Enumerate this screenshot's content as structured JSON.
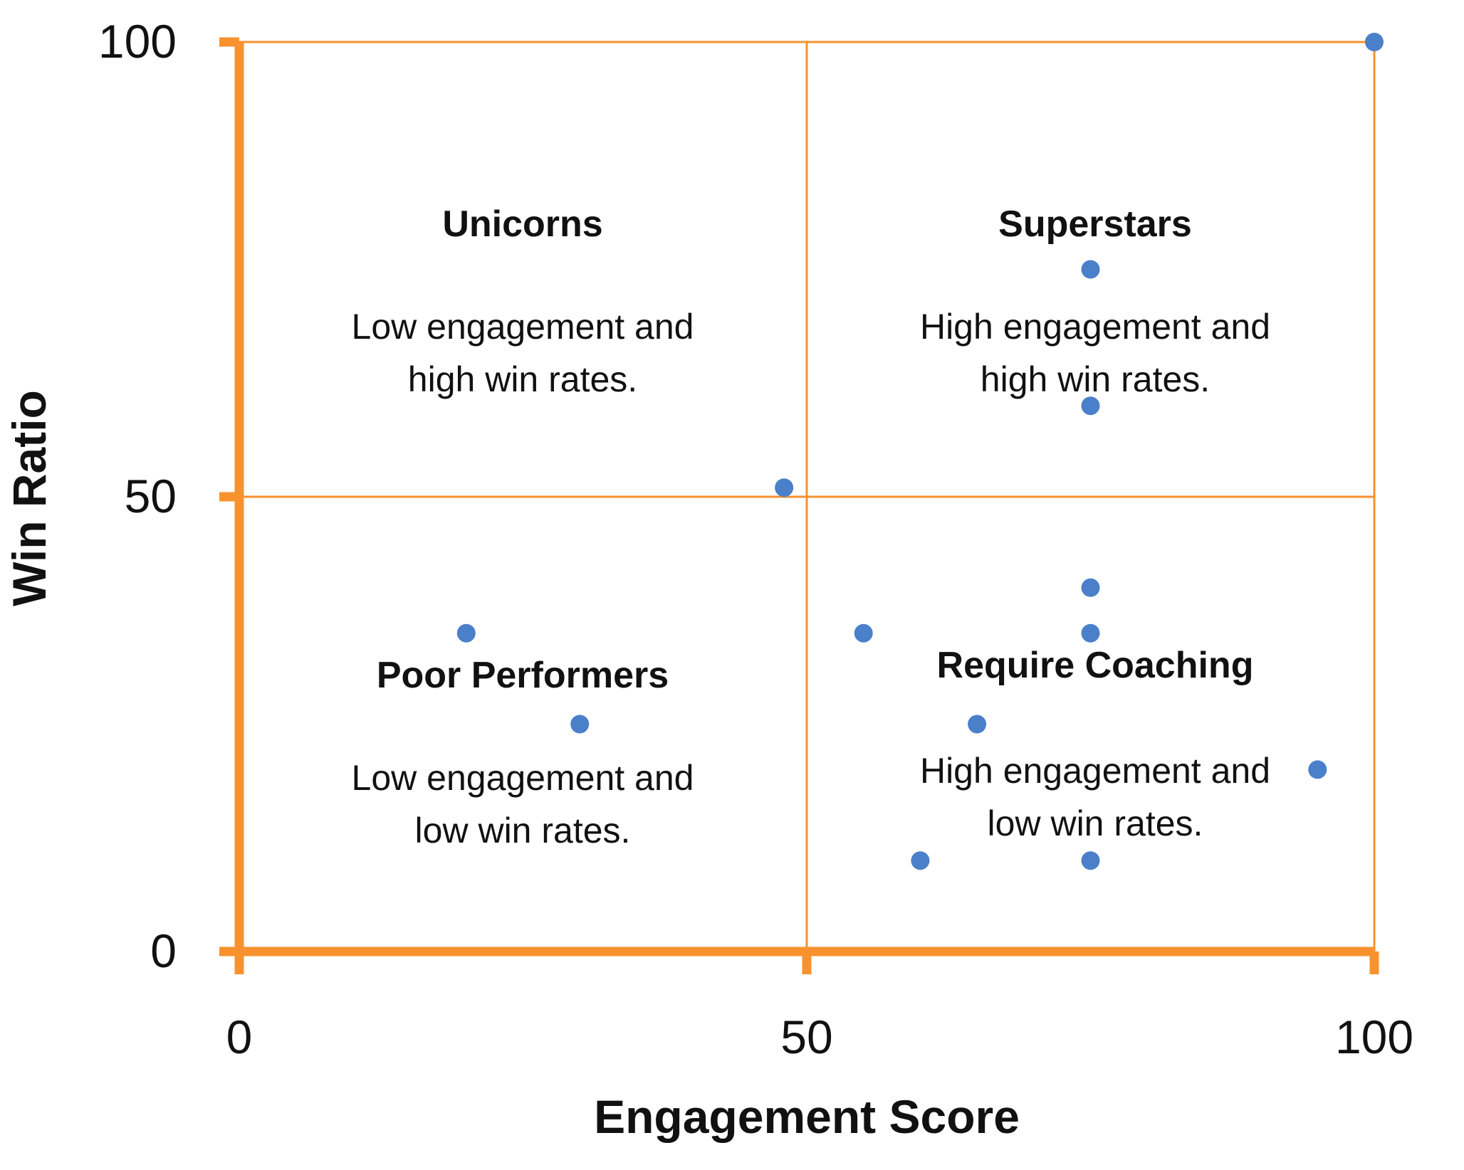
{
  "chart_data": {
    "type": "scatter",
    "title": "",
    "xlabel": "Engagement Score",
    "ylabel": "Win Ratio",
    "xlim": [
      0,
      100
    ],
    "ylim": [
      0,
      100
    ],
    "x_ticks": [
      "0",
      "50",
      "100"
    ],
    "y_ticks": [
      "0",
      "50",
      "100"
    ],
    "grid": true,
    "colors": {
      "axis": "#F7922E",
      "grid": "#F7922E",
      "points": "#4A7FC9",
      "text": "#111111"
    },
    "series": [
      {
        "points": [
          {
            "x": 100,
            "y": 100
          },
          {
            "x": 75,
            "y": 75
          },
          {
            "x": 75,
            "y": 60
          },
          {
            "x": 48,
            "y": 51
          },
          {
            "x": 75,
            "y": 40
          },
          {
            "x": 20,
            "y": 35
          },
          {
            "x": 55,
            "y": 35
          },
          {
            "x": 75,
            "y": 35
          },
          {
            "x": 30,
            "y": 25
          },
          {
            "x": 65,
            "y": 25
          },
          {
            "x": 95,
            "y": 20
          },
          {
            "x": 60,
            "y": 10
          },
          {
            "x": 75,
            "y": 10
          }
        ]
      }
    ],
    "quadrants": [
      {
        "id": "unicorns",
        "title": "Unicorns",
        "lines": [
          "Low engagement and",
          "high win rates."
        ]
      },
      {
        "id": "superstars",
        "title": "Superstars",
        "lines": [
          "High engagement and",
          "high win rates."
        ]
      },
      {
        "id": "poor-performers",
        "title": "Poor Performers",
        "lines": [
          "Low engagement and",
          "low win rates."
        ]
      },
      {
        "id": "require-coaching",
        "title": "Require Coaching",
        "lines": [
          "High engagement and",
          "low win rates."
        ]
      }
    ]
  }
}
